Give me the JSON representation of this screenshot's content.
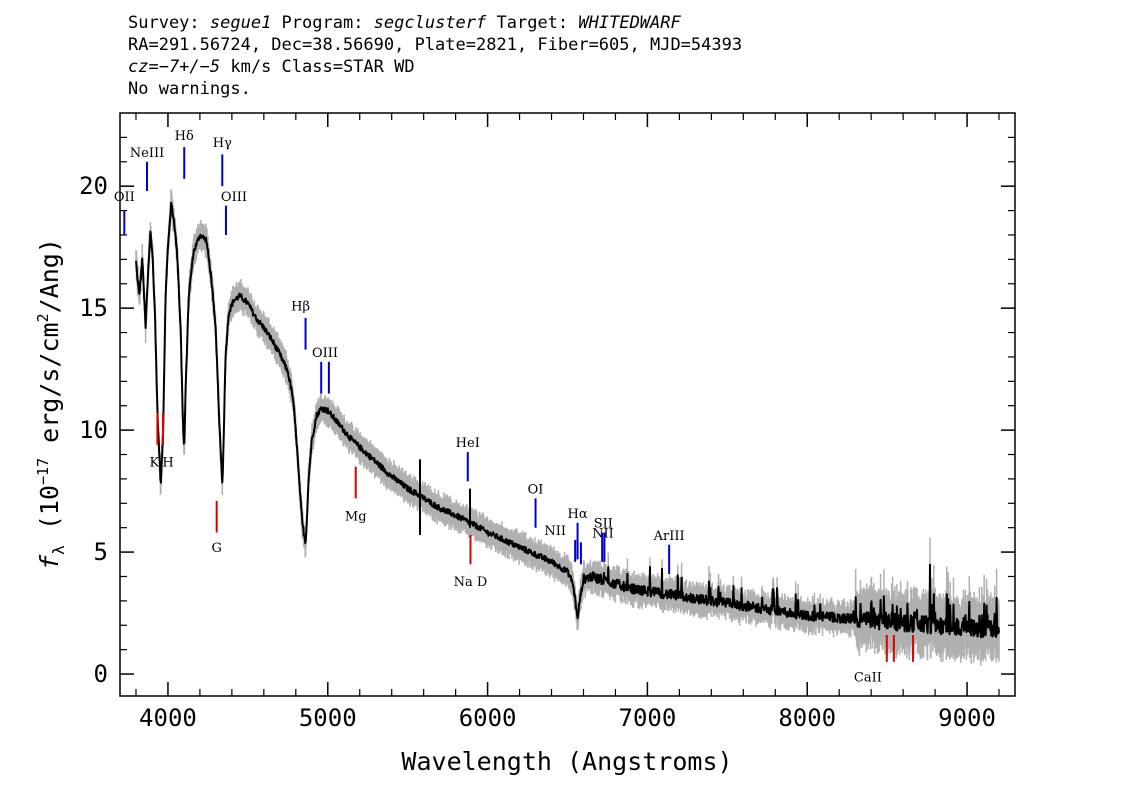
{
  "header": {
    "line1": {
      "survey_label": "Survey: ",
      "survey": "segue1",
      "program_label": " Program: ",
      "program": "segclusterf",
      "target_label": " Target: ",
      "target": "WHITEDWARF"
    },
    "line2": "RA=291.56724, Dec=38.56690, Plate=2821, Fiber=605, MJD=54393",
    "line3": {
      "cz": "cz=−7+/−5",
      "rest": " km/s Class=STAR WD"
    },
    "line4": "No warnings."
  },
  "chart_data": {
    "type": "line",
    "xlabel": "Wavelength (Angstroms)",
    "ylabel_main": "f",
    "ylabel_sub": "λ",
    "ylabel_rest_prefix": " (10",
    "ylabel_exp1": "−17",
    "ylabel_mid": " erg/s/cm",
    "ylabel_exp2": "2",
    "ylabel_rest_suffix": "/Ang)",
    "xlim": [
      3700,
      9300
    ],
    "ylim": [
      -0.9,
      23
    ],
    "x_ticks": [
      4000,
      5000,
      6000,
      7000,
      8000,
      9000
    ],
    "x_tick_labels": [
      "4000",
      "5000",
      "6000",
      "7000",
      "8000",
      "9000"
    ],
    "y_ticks": [
      0,
      5,
      10,
      15,
      20
    ],
    "y_tick_labels": [
      "0",
      "5",
      "10",
      "15",
      "20"
    ],
    "colors": {
      "flux": "#000000",
      "error": "#b0b0b0",
      "emission": "#0000cc",
      "absorption": "#dd0000"
    },
    "spectrum": {
      "x": [
        3800,
        3820,
        3840,
        3860,
        3875,
        3890,
        3905,
        3920,
        3935,
        3955,
        3970,
        3985,
        4000,
        4020,
        4040,
        4060,
        4080,
        4095,
        4102,
        4110,
        4130,
        4160,
        4200,
        4240,
        4270,
        4300,
        4320,
        4335,
        4341,
        4348,
        4360,
        4380,
        4410,
        4450,
        4500,
        4550,
        4600,
        4650,
        4700,
        4750,
        4780,
        4800,
        4820,
        4840,
        4855,
        4861,
        4868,
        4880,
        4900,
        4930,
        4960,
        5000,
        5050,
        5100,
        5150,
        5200,
        5300,
        5400,
        5500,
        5580,
        5600,
        5700,
        5800,
        5890,
        5950,
        6000,
        6100,
        6200,
        6300,
        6400,
        6450,
        6500,
        6530,
        6550,
        6563,
        6576,
        6600,
        6650,
        6700,
        6800,
        6900,
        7000,
        7200,
        7400,
        7600,
        7800,
        8000,
        8200,
        8400,
        8600,
        8800,
        9000,
        9100,
        9200
      ],
      "y": [
        16.9,
        15.5,
        17.0,
        14.2,
        16.3,
        18.2,
        17.0,
        14.5,
        10.5,
        7.8,
        10.0,
        15.5,
        17.5,
        19.3,
        18.5,
        17.0,
        14.0,
        10.0,
        9.2,
        11.5,
        15.5,
        17.3,
        18.0,
        17.8,
        16.3,
        14.0,
        10.5,
        8.5,
        7.7,
        9.5,
        13.0,
        14.8,
        15.3,
        15.5,
        15.2,
        14.6,
        14.2,
        13.7,
        13.1,
        12.4,
        11.4,
        10.0,
        8.0,
        6.2,
        5.6,
        5.4,
        6.2,
        8.0,
        9.6,
        10.6,
        10.9,
        10.8,
        10.4,
        10.0,
        9.6,
        9.3,
        8.7,
        8.1,
        7.6,
        7.3,
        7.2,
        6.8,
        6.5,
        6.2,
        6.0,
        5.8,
        5.5,
        5.2,
        4.9,
        4.6,
        4.4,
        4.2,
        3.8,
        3.0,
        2.2,
        3.0,
        3.9,
        4.0,
        3.9,
        3.7,
        3.5,
        3.4,
        3.2,
        3.0,
        2.8,
        2.6,
        2.4,
        2.3,
        2.2,
        2.1,
        2.0,
        1.9,
        1.85,
        1.8
      ]
    },
    "line_markers": [
      {
        "label": "OII",
        "type": "emission",
        "lines": [
          3727
        ],
        "y": [
          18.0,
          19.0
        ],
        "label_y": 19.4,
        "label_dx": 0
      },
      {
        "label": "NeIII",
        "type": "emission",
        "lines": [
          3869
        ],
        "y": [
          19.8,
          21.0
        ],
        "label_y": 21.2,
        "label_dx": 0
      },
      {
        "label": "Hδ",
        "type": "emission",
        "lines": [
          4102
        ],
        "y": [
          20.3,
          21.6
        ],
        "label_y": 21.9,
        "label_dx": 0
      },
      {
        "label": "Hγ",
        "type": "emission",
        "lines": [
          4340
        ],
        "y": [
          20.0,
          21.3
        ],
        "label_y": 21.6,
        "label_dx": 0
      },
      {
        "label": "OIII",
        "type": "emission",
        "lines": [
          4363
        ],
        "y": [
          18.0,
          19.2
        ],
        "label_y": 19.4,
        "label_dx": 8
      },
      {
        "label": "Hβ",
        "type": "emission",
        "lines": [
          4861
        ],
        "y": [
          13.3,
          14.6
        ],
        "label_y": 14.9,
        "label_dx": -5
      },
      {
        "label": "OIII",
        "type": "emission",
        "lines": [
          4959,
          5007
        ],
        "y": [
          11.5,
          12.8
        ],
        "label_y": 13.0,
        "label_dx": 0
      },
      {
        "label": "HeI",
        "type": "emission",
        "lines": [
          5876
        ],
        "y": [
          7.9,
          9.1
        ],
        "label_y": 9.3,
        "label_dx": 0
      },
      {
        "label": "OI",
        "type": "emission",
        "lines": [
          6300
        ],
        "y": [
          6.0,
          7.2
        ],
        "label_y": 7.4,
        "label_dx": 0
      },
      {
        "label": "NII",
        "type": "emission",
        "lines": [
          6548
        ],
        "y": [
          4.6,
          5.5
        ],
        "label_y": 5.7,
        "label_dx": -20
      },
      {
        "label": "Hα",
        "type": "emission",
        "lines": [
          6563
        ],
        "y": [
          4.7,
          6.2
        ],
        "label_y": 6.4,
        "label_dx": 0
      },
      {
        "label": "NII",
        "type": "emission",
        "lines": [
          6584
        ],
        "y": [
          4.5,
          5.4
        ],
        "label_y": 5.6,
        "label_dx": 22
      },
      {
        "label": "SII",
        "type": "emission",
        "lines": [
          6717,
          6731
        ],
        "y": [
          4.6,
          5.8
        ],
        "label_y": 6.0,
        "label_dx": 0
      },
      {
        "label": "ArIII",
        "type": "emission",
        "lines": [
          7136
        ],
        "y": [
          4.1,
          5.3
        ],
        "label_y": 5.5,
        "label_dx": 0
      },
      {
        "label": "K",
        "type": "absorption",
        "lines": [
          3934
        ],
        "y": [
          9.4,
          10.7
        ],
        "label_y": 8.5,
        "label_dx": -3
      },
      {
        "label": "H",
        "type": "absorption",
        "lines": [
          3969
        ],
        "y": [
          9.4,
          10.7
        ],
        "label_y": 8.5,
        "label_dx": 5
      },
      {
        "label": "G",
        "type": "absorption",
        "lines": [
          4305
        ],
        "y": [
          5.8,
          7.1
        ],
        "label_y": 5.0,
        "label_dx": 0
      },
      {
        "label": "Mg",
        "type": "absorption",
        "lines": [
          5175
        ],
        "y": [
          7.2,
          8.5
        ],
        "label_y": 6.3,
        "label_dx": 0
      },
      {
        "label": "Na D",
        "type": "absorption",
        "lines": [
          5893
        ],
        "y": [
          4.5,
          5.7
        ],
        "label_y": 3.6,
        "label_dx": 0
      },
      {
        "label": "CaII",
        "type": "absorption",
        "lines": [
          8498,
          8542,
          8662
        ],
        "y": [
          0.5,
          1.6
        ],
        "label_y": -0.3,
        "label_dx": -30
      }
    ]
  }
}
